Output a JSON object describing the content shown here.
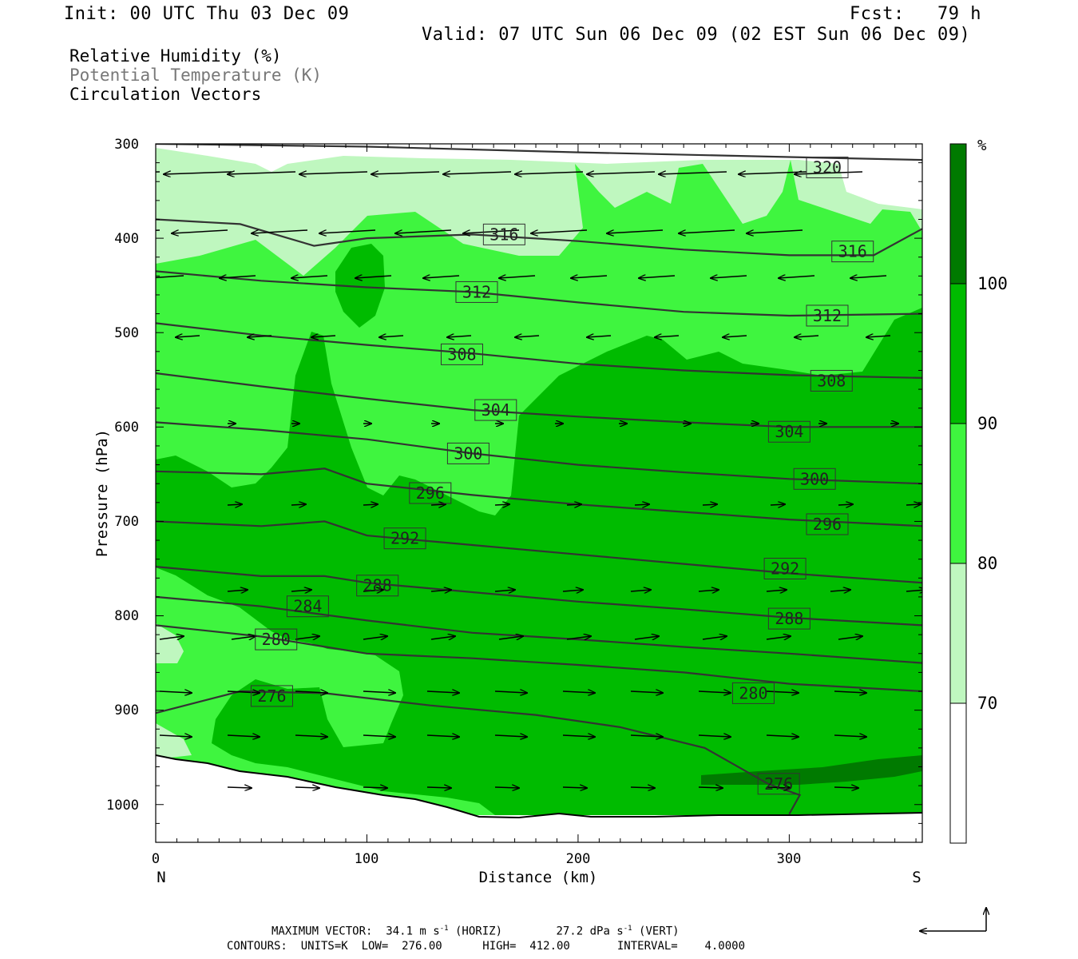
{
  "header": {
    "init": "Init: 00 UTC Thu 03 Dec 09",
    "fcst": "Fcst:   79 h",
    "valid": "Valid: 07 UTC Sun 06 Dec 09 (02 EST Sun 06 Dec 09)"
  },
  "legend": {
    "line1": "Relative Humidity (%)",
    "line2": "Potential Temperature (K)",
    "line3": "Circulation Vectors"
  },
  "footer": {
    "max_vector": "MAXIMUM VECTOR:  34.1 m s",
    "horiz": "(HORIZ)",
    "vert_val": "27.2 dPa s",
    "vert": "(VERT)",
    "contours": "CONTOURS:  UNITS=K  LOW=  276.00      HIGH=  412.00       INTERVAL=    4.0000",
    "sup": "-1"
  },
  "colors": {
    "rh_70_80": "#bff7bf",
    "rh_80_90": "#3ff53f",
    "rh_90_100": "#00bb00",
    "rh_100_plus": "#007a00",
    "theta_line": "#333333",
    "vector": "#000000"
  },
  "chart_data": {
    "type": "cross-section",
    "xlabel": "Distance (km)",
    "ylabel": "Pressure (hPa)",
    "xlim": [
      0,
      363
    ],
    "ylim": [
      1040,
      300
    ],
    "x_ticks": [
      "0",
      "100",
      "200",
      "300"
    ],
    "y_ticks": [
      "300",
      "400",
      "500",
      "600",
      "700",
      "800",
      "900",
      "1000"
    ],
    "x_end_labels": {
      "left": "N",
      "right": "S"
    },
    "colorbar": {
      "unit": "%",
      "levels": [
        "70",
        "80",
        "90",
        "100"
      ]
    },
    "theta_contours": [
      {
        "label": "320",
        "x": [
          0,
          100,
          200,
          300,
          363
        ],
        "p": [
          300,
          303,
          309,
          314,
          317
        ]
      },
      {
        "label": "316",
        "x": [
          0,
          40,
          75,
          100,
          150,
          200,
          250,
          300,
          340,
          363
        ],
        "p": [
          380,
          385,
          408,
          400,
          396,
          403,
          412,
          418,
          418,
          390
        ]
      },
      {
        "label": "312",
        "x": [
          0,
          50,
          100,
          150,
          200,
          250,
          300,
          363
        ],
        "p": [
          435,
          445,
          452,
          457,
          468,
          478,
          482,
          480
        ]
      },
      {
        "label": "308",
        "x": [
          0,
          50,
          100,
          150,
          200,
          250,
          300,
          363
        ],
        "p": [
          490,
          503,
          513,
          522,
          533,
          540,
          545,
          548
        ]
      },
      {
        "label": "304",
        "x": [
          0,
          50,
          100,
          150,
          200,
          250,
          300,
          363
        ],
        "p": [
          543,
          557,
          570,
          582,
          589,
          595,
          600,
          600
        ]
      },
      {
        "label": "300",
        "x": [
          0,
          50,
          100,
          150,
          200,
          250,
          300,
          363
        ],
        "p": [
          595,
          603,
          613,
          628,
          640,
          648,
          655,
          660
        ]
      },
      {
        "label": "296",
        "x": [
          0,
          50,
          80,
          100,
          150,
          200,
          250,
          300,
          363
        ],
        "p": [
          647,
          650,
          644,
          660,
          672,
          682,
          690,
          698,
          705
        ]
      },
      {
        "label": "292",
        "x": [
          0,
          50,
          80,
          100,
          150,
          200,
          250,
          300,
          363
        ],
        "p": [
          700,
          705,
          700,
          715,
          725,
          735,
          745,
          755,
          765
        ]
      },
      {
        "label": "288",
        "x": [
          0,
          50,
          80,
          100,
          150,
          200,
          250,
          300,
          363
        ],
        "p": [
          748,
          758,
          758,
          765,
          775,
          785,
          793,
          802,
          810
        ]
      },
      {
        "label": "284",
        "x": [
          0,
          50,
          100,
          150,
          200,
          250,
          300,
          363
        ],
        "p": [
          780,
          790,
          805,
          818,
          825,
          833,
          840,
          850
        ]
      },
      {
        "label": "280",
        "x": [
          0,
          50,
          100,
          150,
          200,
          250,
          300,
          363
        ],
        "p": [
          810,
          822,
          840,
          845,
          852,
          860,
          872,
          880
        ]
      },
      {
        "label": "276",
        "x": [
          0,
          40,
          80,
          130,
          180,
          220,
          260,
          290,
          305,
          300
        ],
        "p": [
          903,
          880,
          882,
          895,
          905,
          918,
          940,
          978,
          990,
          1010
        ]
      }
    ],
    "theta_label_positions": [
      {
        "label": "320",
        "x": 318,
        "p": 325
      },
      {
        "label": "316",
        "x": 165,
        "p": 396
      },
      {
        "label": "316",
        "x": 330,
        "p": 414
      },
      {
        "label": "312",
        "x": 152,
        "p": 457
      },
      {
        "label": "312",
        "x": 318,
        "p": 482
      },
      {
        "label": "308",
        "x": 145,
        "p": 523
      },
      {
        "label": "308",
        "x": 320,
        "p": 551
      },
      {
        "label": "304",
        "x": 161,
        "p": 582
      },
      {
        "label": "304",
        "x": 300,
        "p": 605
      },
      {
        "label": "300",
        "x": 148,
        "p": 628
      },
      {
        "label": "300",
        "x": 312,
        "p": 655
      },
      {
        "label": "296",
        "x": 130,
        "p": 670
      },
      {
        "label": "296",
        "x": 318,
        "p": 703
      },
      {
        "label": "292",
        "x": 118,
        "p": 718
      },
      {
        "label": "292",
        "x": 298,
        "p": 750
      },
      {
        "label": "288",
        "x": 105,
        "p": 768
      },
      {
        "label": "288",
        "x": 300,
        "p": 803
      },
      {
        "label": "284",
        "x": 72,
        "p": 790
      },
      {
        "label": "280",
        "x": 57,
        "p": 825
      },
      {
        "label": "280",
        "x": 283,
        "p": 882
      },
      {
        "label": "276",
        "x": 55,
        "p": 885
      },
      {
        "label": "276",
        "x": 295,
        "p": 978
      }
    ],
    "footer_annotations": {
      "max_vector_horiz": "34.1 m s-1",
      "max_vector_vert": "27.2 dPa s-1",
      "contour_units": "K",
      "contour_low": "276.00",
      "contour_high": "412.00",
      "contour_interval": "4.0000"
    }
  }
}
